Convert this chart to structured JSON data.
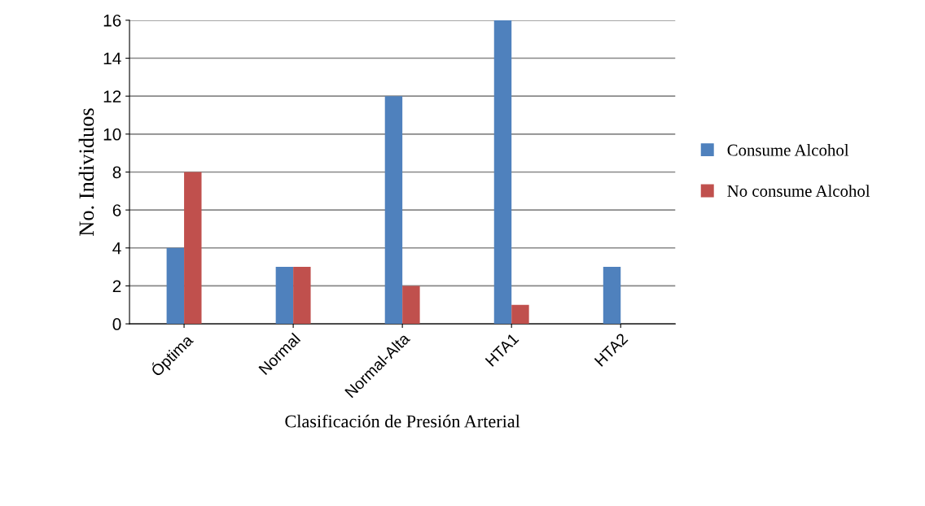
{
  "chart_data": {
    "type": "bar",
    "xlabel": "Clasificación de Presión Arterial",
    "ylabel": "No. Individuos",
    "categories": [
      "Óptima",
      "Normal",
      "Normal-Alta",
      "HTA1",
      "HTA2"
    ],
    "series": [
      {
        "name": "Consume Alcohol",
        "color": "#4f81bd",
        "values": [
          4,
          3,
          12,
          16,
          3
        ]
      },
      {
        "name": "No consume Alcohol",
        "color": "#c0504d",
        "values": [
          8,
          3,
          2,
          1,
          0
        ]
      }
    ],
    "ylim": [
      0,
      16
    ],
    "yticks": [
      0,
      2,
      4,
      6,
      8,
      10,
      12,
      14,
      16
    ],
    "grid": "y",
    "legend": "right"
  }
}
